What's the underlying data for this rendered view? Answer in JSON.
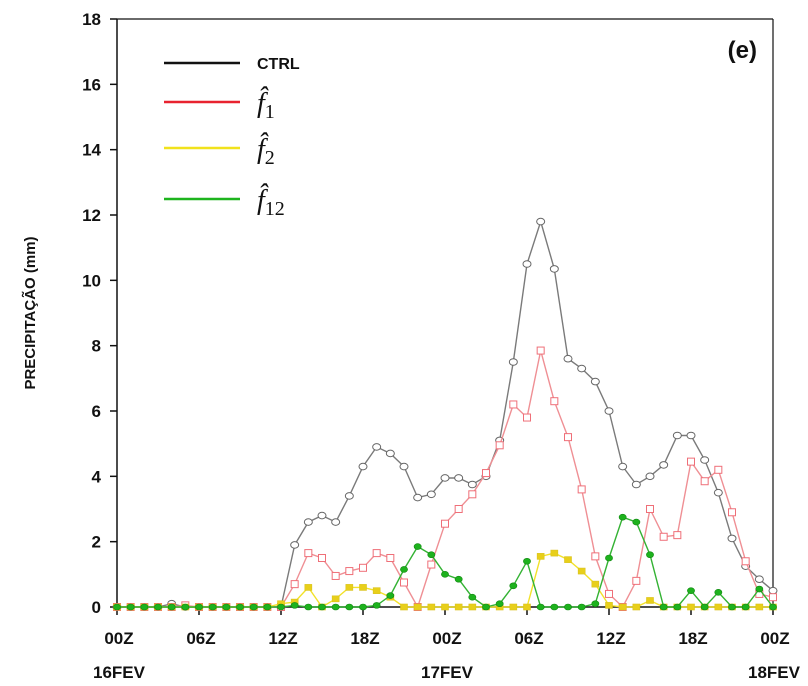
{
  "chart_data": {
    "type": "line",
    "panel_label": "(e)",
    "ylabel": "PRECIPITAÇÃO (mm)",
    "ylim": [
      0,
      18
    ],
    "y_ticks": [
      0,
      2,
      4,
      6,
      8,
      10,
      12,
      14,
      16,
      18
    ],
    "x_ticks": [
      "00Z",
      "06Z",
      "12Z",
      "18Z",
      "00Z",
      "06Z",
      "12Z",
      "18Z",
      "00Z"
    ],
    "x_tick_hours": [
      0,
      6,
      12,
      18,
      24,
      30,
      36,
      42,
      48
    ],
    "date_labels": [
      {
        "text": "16FEV",
        "hour": 0
      },
      {
        "text": "17FEV",
        "hour": 24
      },
      {
        "text": "18FEV",
        "hour": 48
      }
    ],
    "xlim_hours": [
      0,
      48
    ],
    "legend_position": "top-left",
    "series": [
      {
        "name": "CTRL",
        "color": "#7a7a7a",
        "marker": "circle",
        "x": [
          0,
          1,
          2,
          3,
          4,
          5,
          6,
          7,
          8,
          9,
          10,
          11,
          12,
          13,
          14,
          15,
          16,
          17,
          18,
          19,
          20,
          21,
          22,
          23,
          24,
          25,
          26,
          27,
          28,
          29,
          30,
          31,
          32,
          33,
          34,
          35,
          36,
          37,
          38,
          39,
          40,
          41,
          42,
          43,
          44,
          45,
          46,
          47,
          48
        ],
        "y": [
          0,
          0,
          0,
          0,
          0.1,
          0,
          0,
          0,
          0,
          0,
          0,
          0,
          0,
          1.9,
          2.6,
          2.8,
          2.6,
          3.4,
          4.3,
          4.9,
          4.7,
          4.3,
          3.35,
          3.45,
          3.95,
          3.95,
          3.75,
          4.0,
          5.1,
          7.5,
          10.5,
          11.8,
          10.35,
          7.6,
          7.3,
          6.9,
          6.0,
          4.3,
          3.75,
          4.0,
          4.35,
          5.25,
          5.25,
          4.5,
          3.5,
          2.1,
          1.25,
          0.85,
          0.5
        ]
      },
      {
        "name": "f̂1",
        "color": "#ef8f94",
        "marker": "square-open",
        "x": [
          0,
          1,
          2,
          3,
          4,
          5,
          6,
          7,
          8,
          9,
          10,
          11,
          12,
          13,
          14,
          15,
          16,
          17,
          18,
          19,
          20,
          21,
          22,
          23,
          24,
          25,
          26,
          27,
          28,
          29,
          30,
          31,
          32,
          33,
          34,
          35,
          36,
          37,
          38,
          39,
          40,
          41,
          42,
          43,
          44,
          45,
          46,
          47,
          48
        ],
        "y": [
          0,
          0,
          0,
          0,
          0,
          0.05,
          0,
          0,
          0,
          0,
          0,
          0,
          0,
          0.7,
          1.65,
          1.5,
          0.95,
          1.1,
          1.2,
          1.65,
          1.5,
          0.75,
          0,
          1.3,
          2.55,
          3.0,
          3.45,
          4.1,
          4.95,
          6.2,
          5.8,
          7.85,
          6.3,
          5.2,
          3.6,
          1.55,
          0.4,
          0,
          0.8,
          3.0,
          2.15,
          2.2,
          4.45,
          3.85,
          4.2,
          2.9,
          1.4,
          0.4,
          0.3
        ]
      },
      {
        "name": "f̂2",
        "color": "#f2e22a",
        "marker": "square-filled",
        "x": [
          0,
          1,
          2,
          3,
          4,
          5,
          6,
          7,
          8,
          9,
          10,
          11,
          12,
          13,
          14,
          15,
          16,
          17,
          18,
          19,
          20,
          21,
          22,
          23,
          24,
          25,
          26,
          27,
          28,
          29,
          30,
          31,
          32,
          33,
          34,
          35,
          36,
          37,
          38,
          39,
          40,
          41,
          42,
          43,
          44,
          45,
          46,
          47,
          48
        ],
        "y": [
          0,
          0,
          0,
          0,
          0,
          0,
          0,
          0,
          0,
          0,
          0,
          0,
          0.1,
          0.15,
          0.6,
          0,
          0.25,
          0.6,
          0.6,
          0.5,
          0.3,
          0,
          0,
          0,
          0,
          0,
          0,
          0,
          0,
          0,
          0,
          1.55,
          1.65,
          1.45,
          1.1,
          0.7,
          0.05,
          0,
          0,
          0.2,
          0,
          0,
          0,
          0,
          0,
          0,
          0,
          0,
          0
        ]
      },
      {
        "name": "f̂12",
        "color": "#33b233",
        "marker": "circle-filled",
        "x": [
          0,
          1,
          2,
          3,
          4,
          5,
          6,
          7,
          8,
          9,
          10,
          11,
          12,
          13,
          14,
          15,
          16,
          17,
          18,
          19,
          20,
          21,
          22,
          23,
          24,
          25,
          26,
          27,
          28,
          29,
          30,
          31,
          32,
          33,
          34,
          35,
          36,
          37,
          38,
          39,
          40,
          41,
          42,
          43,
          44,
          45,
          46,
          47,
          48
        ],
        "y": [
          0,
          0,
          0,
          0,
          0,
          0,
          0,
          0,
          0,
          0,
          0,
          0,
          0,
          0.05,
          0,
          0,
          0,
          0,
          0,
          0.05,
          0.35,
          1.15,
          1.85,
          1.6,
          1.0,
          0.85,
          0.3,
          0,
          0.1,
          0.65,
          1.4,
          0,
          0,
          0,
          0,
          0.1,
          1.5,
          2.75,
          2.6,
          1.6,
          0,
          0,
          0.5,
          0,
          0.45,
          0,
          0,
          0.55,
          0
        ]
      }
    ]
  }
}
